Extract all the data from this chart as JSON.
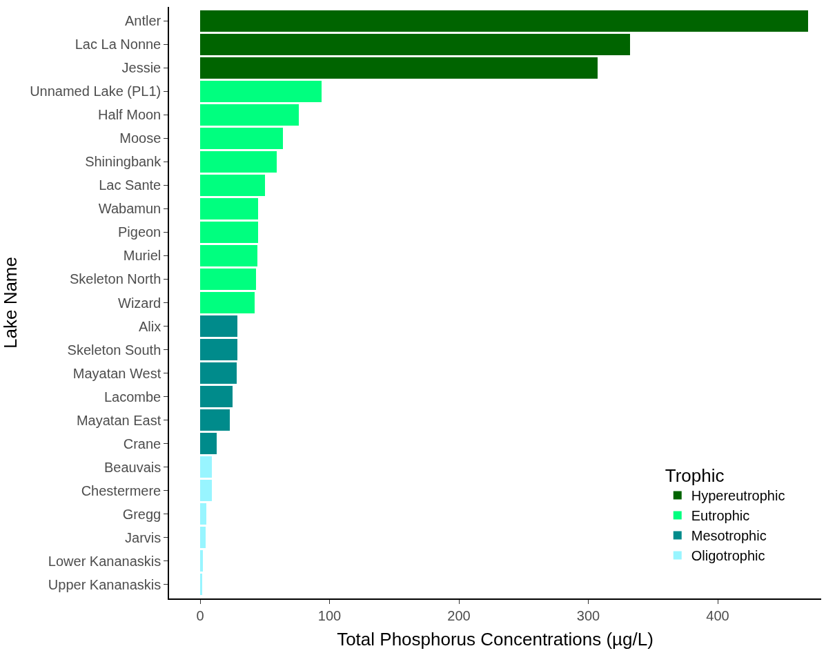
{
  "chart_data": {
    "type": "bar",
    "orientation": "horizontal",
    "stacked": true,
    "xlabel": "Total Phosphorus Concentrations (µg/L)",
    "ylabel": "Lake Name",
    "legend_title": "Trophic",
    "legend": "bottom right",
    "categories": [
      "Antler",
      "Lac La Nonne",
      "Jessie",
      "Unnamed Lake (PL1)",
      "Half Moon",
      "Moose",
      "Shiningbank",
      "Lac Sante",
      "Wabamun",
      "Pigeon",
      "Muriel",
      "Skeleton North",
      "Wizard",
      "Alix",
      "Skeleton South",
      "Mayatan West",
      "Lacombe",
      "Mayatan East",
      "Crane",
      "Beauvais",
      "Chestermere",
      "Gregg",
      "Jarvis",
      "Lower Kananaskis",
      "Upper Kananaskis"
    ],
    "xlim": [
      -24,
      480
    ],
    "xticks": [
      0,
      100,
      200,
      300,
      400
    ],
    "series": [
      {
        "name": "Hypereutrophic",
        "color": "#006400",
        "values": [
          470,
          332,
          307,
          null,
          null,
          null,
          null,
          null,
          null,
          null,
          null,
          null,
          null,
          null,
          null,
          null,
          null,
          null,
          null,
          null,
          null,
          null,
          null,
          null,
          null
        ]
      },
      {
        "name": "Eutrophic",
        "color": "#00ff7f",
        "values": [
          null,
          null,
          null,
          94,
          76,
          64,
          59,
          50,
          45,
          45,
          44,
          43,
          42,
          null,
          null,
          null,
          null,
          null,
          null,
          null,
          null,
          null,
          null,
          null,
          null
        ]
      },
      {
        "name": "Mesotrophic",
        "color": "#008b8b",
        "values": [
          null,
          null,
          null,
          null,
          null,
          null,
          null,
          null,
          null,
          null,
          null,
          null,
          null,
          29,
          29,
          28,
          25,
          23,
          13,
          null,
          null,
          null,
          null,
          null,
          null
        ]
      },
      {
        "name": "Oligotrophic",
        "color": "#98f5ff",
        "values": [
          null,
          null,
          null,
          null,
          null,
          null,
          null,
          null,
          null,
          null,
          null,
          null,
          null,
          null,
          null,
          null,
          null,
          null,
          null,
          9,
          9,
          5,
          4,
          2,
          1.5
        ]
      }
    ]
  }
}
